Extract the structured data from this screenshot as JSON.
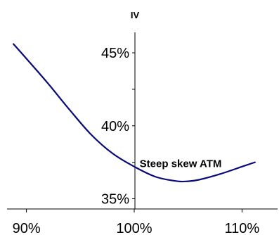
{
  "chart_data": {
    "type": "line",
    "title": "",
    "xlabel": "",
    "ylabel": "IV",
    "x_ticks": [
      "90%",
      "100%",
      "110%"
    ],
    "y_ticks": [
      "35%",
      "40%",
      "45%"
    ],
    "xlim": [
      88.2,
      113.3
    ],
    "ylim": [
      34.3,
      46.4
    ],
    "grid": false,
    "series": [
      {
        "color": "#0a0a78",
        "x": [
          88.8,
          90,
          92,
          94,
          96,
          98,
          100,
          102,
          104,
          105,
          106,
          108,
          110,
          111.2
        ],
        "y": [
          45.6,
          44.6,
          42.9,
          41.1,
          39.4,
          38.1,
          37.2,
          36.5,
          36.2,
          36.2,
          36.3,
          36.7,
          37.2,
          37.5
        ]
      }
    ],
    "annotations": [
      {
        "text": "Steep skew ATM",
        "x": 100.5,
        "y": 37.4
      }
    ]
  }
}
